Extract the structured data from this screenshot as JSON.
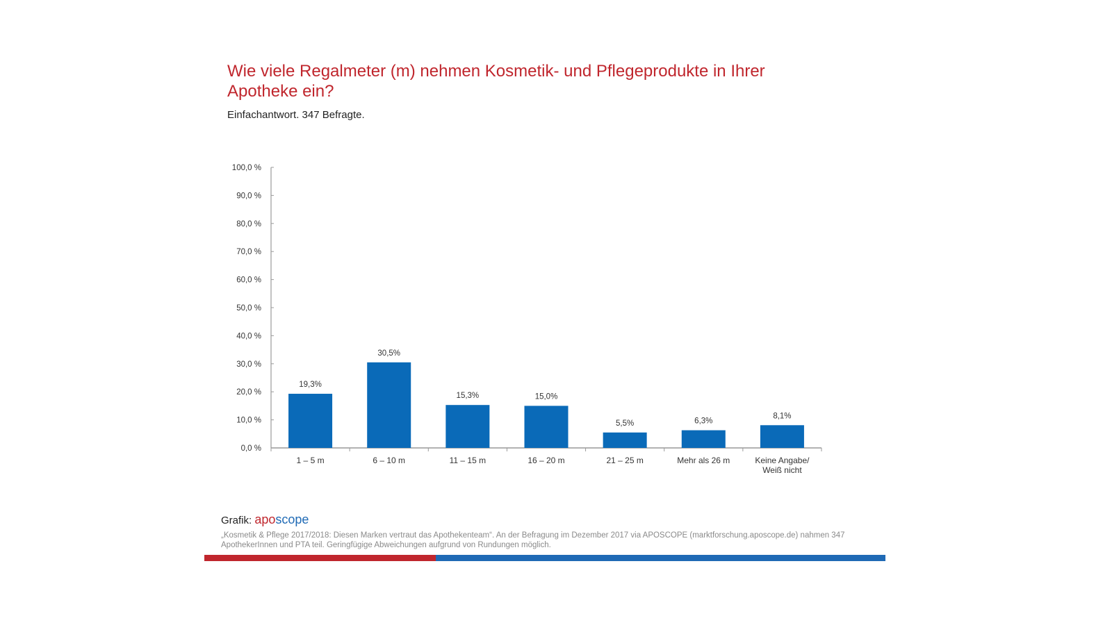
{
  "header": {
    "title": "Wie viele Regalmeter (m) nehmen Kosmetik- und Pflegeprodukte in Ihrer Apotheke ein?",
    "subtitle": "Einfachantwort. 347 Befragte."
  },
  "colors": {
    "bar": "#0a6ab8",
    "title": "#c0262d",
    "axis": "#999999",
    "footer_red": "#c0262d",
    "footer_blue": "#1f6ab5"
  },
  "chart_data": {
    "type": "bar",
    "title": "Wie viele Regalmeter (m) nehmen Kosmetik- und Pflegeprodukte in Ihrer Apotheke ein?",
    "subtitle": "Einfachantwort. 347 Befragte.",
    "xlabel": "",
    "ylabel": "",
    "ylim": [
      0,
      100
    ],
    "yticks": [
      0,
      10,
      20,
      30,
      40,
      50,
      60,
      70,
      80,
      90,
      100
    ],
    "ytick_labels": [
      "0,0 %",
      "10,0 %",
      "20,0 %",
      "30,0 %",
      "40,0 %",
      "50,0 %",
      "60,0 %",
      "70,0 %",
      "80,0 %",
      "90,0 %",
      "100,0 %"
    ],
    "categories": [
      "1 – 5 m",
      "6 – 10 m",
      "11 – 15 m",
      "16 – 20 m",
      "21 – 25 m",
      "Mehr als 26 m",
      "Keine Angabe/\nWeiß nicht"
    ],
    "values": [
      19.3,
      30.5,
      15.3,
      15.0,
      5.5,
      6.3,
      8.1
    ],
    "value_labels": [
      "19,3%",
      "30,5%",
      "15,3%",
      "15,0%",
      "5,5%",
      "6,3%",
      "8,1%"
    ],
    "grid": false,
    "legend": "none"
  },
  "footer": {
    "credit_prefix": "Grafik:",
    "logo_part1": "apo",
    "logo_part2": "scope",
    "source": "„Kosmetik & Pflege 2017/2018: Diesen Marken vertraut das Apothekenteam“. An der Befragung im Dezember 2017 via APOSCOPE (marktforschung.aposcope.de) nahmen 347 ApothekerInnen und PTA teil. Geringfügige Abweichungen aufgrund von Rundungen möglich."
  }
}
